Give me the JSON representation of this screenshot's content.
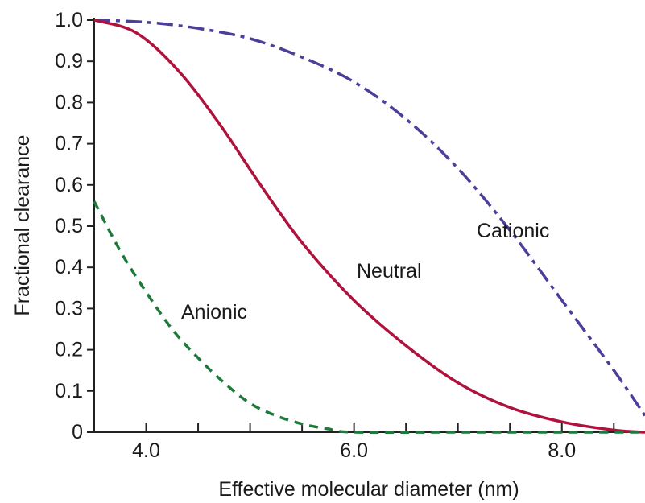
{
  "chart_data": {
    "type": "line",
    "title": "",
    "xlabel": "Effective molecular diameter (nm)",
    "ylabel": "Fractional clearance",
    "xlim": [
      3.5,
      8.8
    ],
    "ylim": [
      0,
      1.0
    ],
    "x_tick_labels": [
      "4.0",
      "6.0",
      "8.0"
    ],
    "y_tick_labels": [
      "0",
      "0.1",
      "0.2",
      "0.3",
      "0.4",
      "0.5",
      "0.6",
      "0.7",
      "0.8",
      "0.9",
      "1.0"
    ],
    "grid": false,
    "legend": "none (series labeled directly on plot)",
    "series": [
      {
        "name": "Cationic",
        "color": "#4b3f99",
        "style": "dash-dot",
        "points": [
          [
            3.5,
            1.0
          ],
          [
            4.0,
            0.995
          ],
          [
            4.5,
            0.98
          ],
          [
            5.0,
            0.955
          ],
          [
            5.5,
            0.91
          ],
          [
            6.0,
            0.85
          ],
          [
            6.5,
            0.76
          ],
          [
            7.0,
            0.64
          ],
          [
            7.5,
            0.49
          ],
          [
            8.0,
            0.32
          ],
          [
            8.5,
            0.15
          ],
          [
            8.8,
            0.04
          ]
        ]
      },
      {
        "name": "Neutral",
        "color": "#b0123e",
        "style": "solid",
        "points": [
          [
            3.5,
            1.0
          ],
          [
            3.9,
            0.97
          ],
          [
            4.3,
            0.88
          ],
          [
            4.7,
            0.75
          ],
          [
            5.1,
            0.6
          ],
          [
            5.5,
            0.46
          ],
          [
            6.0,
            0.32
          ],
          [
            6.5,
            0.21
          ],
          [
            7.0,
            0.12
          ],
          [
            7.5,
            0.06
          ],
          [
            8.0,
            0.025
          ],
          [
            8.5,
            0.005
          ],
          [
            8.8,
            0.0
          ]
        ]
      },
      {
        "name": "Anionic",
        "color": "#1e7a3a",
        "style": "dashed",
        "points": [
          [
            3.5,
            0.56
          ],
          [
            3.75,
            0.44
          ],
          [
            4.0,
            0.34
          ],
          [
            4.25,
            0.25
          ],
          [
            4.5,
            0.18
          ],
          [
            4.75,
            0.12
          ],
          [
            5.0,
            0.07
          ],
          [
            5.25,
            0.04
          ],
          [
            5.5,
            0.02
          ],
          [
            5.75,
            0.008
          ],
          [
            6.0,
            0.0
          ],
          [
            7.0,
            0.0
          ],
          [
            8.0,
            0.0
          ],
          [
            8.8,
            0.0
          ]
        ]
      }
    ]
  }
}
